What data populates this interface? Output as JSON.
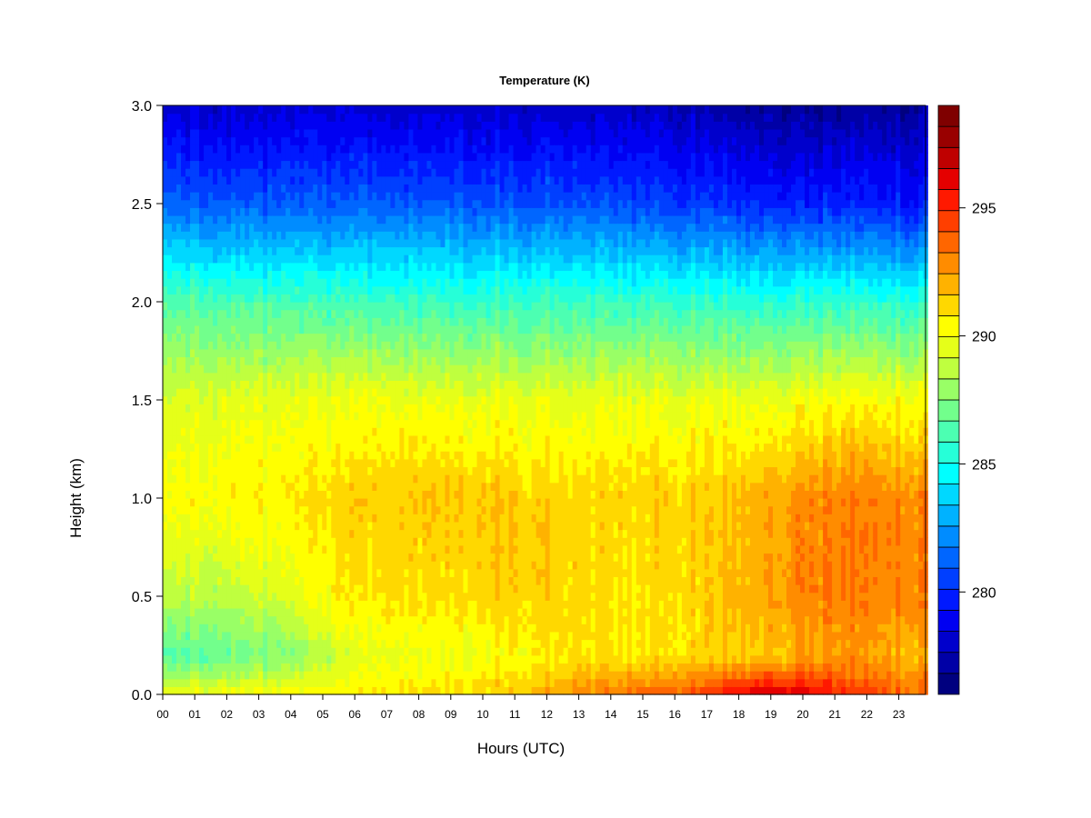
{
  "chart_data": {
    "type": "heatmap",
    "title": "Temperature (K)",
    "xlabel": "Hours (UTC)",
    "ylabel": "Height (km)",
    "x_range": [
      0,
      23.9
    ],
    "y_range": [
      0,
      3.0
    ],
    "x_tick_labels": [
      "00",
      "01",
      "02",
      "03",
      "04",
      "05",
      "06",
      "07",
      "08",
      "09",
      "10",
      "11",
      "12",
      "13",
      "14",
      "15",
      "16",
      "17",
      "18",
      "19",
      "20",
      "21",
      "22",
      "23"
    ],
    "y_tick_labels": [
      "0.0",
      "0.5",
      "1.0",
      "1.5",
      "2.0",
      "2.5",
      "3.0"
    ],
    "y_tick_values": [
      0,
      0.5,
      1.0,
      1.5,
      2.0,
      2.5,
      3.0
    ],
    "colorbar": {
      "min": 276,
      "max": 299,
      "step": 1,
      "tick_values": [
        280,
        285,
        290,
        295
      ],
      "tick_labels": [
        "280",
        "285",
        "290",
        "295"
      ]
    },
    "colors": [
      "#00007f",
      "#0000a6",
      "#0000cc",
      "#0000f2",
      "#0019ff",
      "#003fff",
      "#0066ff",
      "#008cff",
      "#00b2ff",
      "#00d8ff",
      "#00ffff",
      "#26ffd8",
      "#4cffb2",
      "#72ff8c",
      "#99ff66",
      "#bfff3f",
      "#e5ff19",
      "#ffff00",
      "#ffd800",
      "#ffb200",
      "#ff8c00",
      "#ff6600",
      "#ff3f00",
      "#ff1900",
      "#e50000",
      "#bf0000",
      "#990000",
      "#7f0000"
    ],
    "profiles": {
      "hours": [
        0,
        2,
        4,
        5.5,
        7,
        9,
        11,
        13,
        15,
        17,
        18.5,
        20,
        21.5,
        23.9
      ],
      "surface": [
        289.6,
        290.2,
        290.2,
        290.4,
        290.8,
        291.2,
        291.6,
        293.0,
        293.6,
        294.6,
        296.8,
        296.5,
        294.8,
        293.5
      ],
      "h0_2": [
        286.4,
        286.8,
        287.4,
        289.0,
        290.0,
        289.8,
        290.4,
        291.0,
        290.8,
        291.2,
        291.4,
        292.0,
        292.5,
        292.0
      ],
      "h0_5": [
        288.6,
        288.6,
        289.4,
        290.6,
        291.0,
        291.0,
        291.6,
        291.2,
        290.8,
        291.4,
        292.2,
        293.0,
        293.2,
        293.0
      ],
      "h1_0": [
        290.2,
        290.5,
        290.6,
        291.2,
        291.6,
        291.6,
        291.6,
        291.3,
        291.3,
        291.5,
        292.0,
        292.8,
        293.2,
        293.0
      ],
      "h1_5": [
        289.4,
        289.6,
        289.6,
        289.8,
        290.0,
        289.8,
        289.8,
        289.8,
        289.8,
        289.8,
        289.8,
        290.0,
        290.3,
        290.2
      ],
      "h2_0": [
        286.4,
        286.2,
        286.0,
        286.0,
        286.0,
        285.8,
        286.0,
        286.0,
        285.8,
        285.8,
        285.6,
        285.6,
        285.6,
        285.6
      ],
      "h2_5": [
        281.4,
        281.0,
        281.0,
        281.0,
        281.2,
        281.0,
        281.0,
        281.0,
        280.6,
        280.4,
        280.0,
        279.8,
        279.8,
        279.6
      ],
      "h3_0": [
        278.0,
        278.0,
        278.0,
        278.2,
        278.0,
        278.0,
        278.0,
        278.0,
        277.8,
        277.4,
        277.0,
        276.8,
        277.0,
        277.2
      ]
    }
  }
}
